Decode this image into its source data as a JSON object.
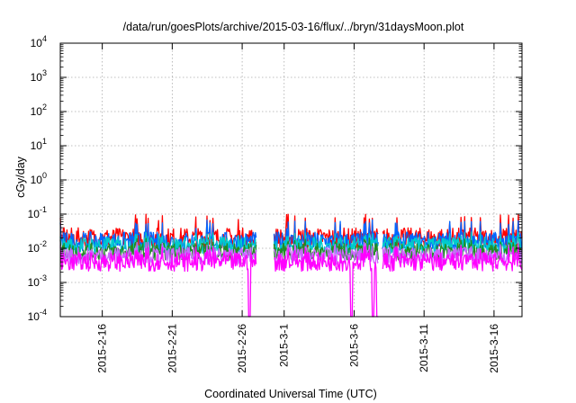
{
  "chart_data": {
    "type": "line",
    "title": "/data/run/goesPlots/archive/2015-03-16/flux/../bryn/31daysMoon.plot",
    "xlabel": "Coordinated Universal Time (UTC)",
    "ylabel": "cGy/day",
    "y_scale": "log",
    "ylim": [
      0.0001,
      10000
    ],
    "xlim": [
      "2015-02-13T00:00",
      "2015-03-18T00:00"
    ],
    "y_ticks": [
      {
        "base": "10",
        "exp": "-4"
      },
      {
        "base": "10",
        "exp": "-3"
      },
      {
        "base": "10",
        "exp": "-2"
      },
      {
        "base": "10",
        "exp": "-1"
      },
      {
        "base": "10",
        "exp": "0"
      },
      {
        "base": "10",
        "exp": "1"
      },
      {
        "base": "10",
        "exp": "2"
      },
      {
        "base": "10",
        "exp": "3"
      },
      {
        "base": "10",
        "exp": "4"
      }
    ],
    "x_ticks": [
      "2015-2-16",
      "2015-2-21",
      "2015-2-26",
      "2015-3-1",
      "2015-3-6",
      "2015-3-11",
      "2015-3-16"
    ],
    "grid": true,
    "legend": "none",
    "data_gaps": [
      [
        "2015-02-27T00:00",
        "2015-02-28T06:00"
      ],
      [
        "2015-03-07T18:00",
        "2015-03-08T00:00"
      ]
    ],
    "series": [
      {
        "color": "#ff0000",
        "base": 0.02,
        "spread": 0.6,
        "peak": 0.1
      },
      {
        "color": "#0066ff",
        "base": 0.016,
        "spread": 0.55,
        "peak": 0.07
      },
      {
        "color": "#00cccc",
        "base": 0.012,
        "spread": 0.5,
        "peak": 0.03
      },
      {
        "color": "#228b22",
        "base": 0.008,
        "spread": 0.5,
        "peak": 0.02
      },
      {
        "color": "#cc66ff",
        "base": 0.006,
        "spread": 0.5,
        "peak": 0.015
      },
      {
        "color": "#ff00ff",
        "base": 0.004,
        "spread": 0.55,
        "peak": 0.012,
        "dips": [
          "2015-02-26T12:00",
          "2015-03-05T20:00",
          "2015-03-07T08:00",
          "2015-03-07T16:00"
        ]
      }
    ]
  }
}
